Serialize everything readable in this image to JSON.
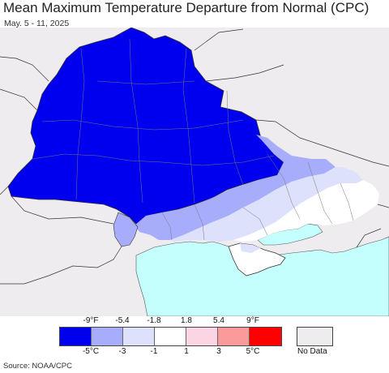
{
  "title": "Mean Maximum Temperature Departure from Normal (CPC)",
  "subtitle": "May. 5 - 11, 2025",
  "source": "Source: NOAA/CPC",
  "colors": {
    "background_land": "#efecef",
    "water": "#c4fffe",
    "border": "#333333",
    "oblast_line": "#777777"
  },
  "legend": {
    "fahrenheit_ticks": [
      "-9°F",
      "-5.4",
      "-1.8",
      "1.8",
      "5.4",
      "9°F"
    ],
    "celsius_ticks": [
      "-5°C",
      "-3",
      "-1",
      "1",
      "3",
      "5°C"
    ],
    "swatches": [
      {
        "color": "#0000ee"
      },
      {
        "color": "#a8adfb"
      },
      {
        "color": "#dee1fc"
      },
      {
        "color": "#ffffff"
      },
      {
        "color": "#fcd5e4"
      },
      {
        "color": "#fb9a9a"
      },
      {
        "color": "#ff0000"
      }
    ],
    "no_data_label": "No Data",
    "no_data_color": "#efecef"
  }
}
